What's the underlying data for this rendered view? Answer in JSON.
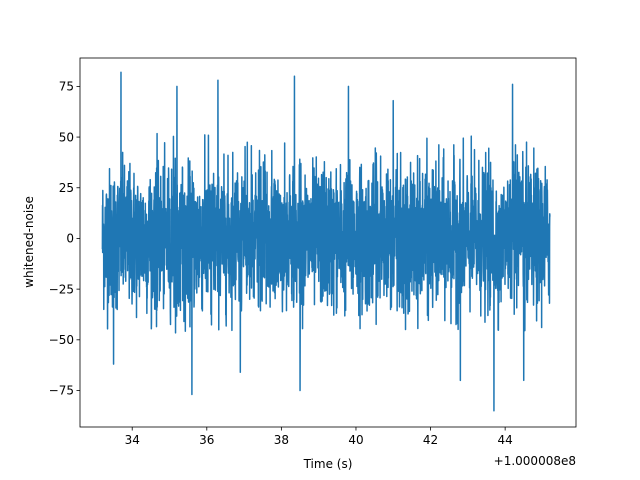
{
  "chart_data": {
    "type": "line",
    "title": "",
    "xlabel": "Time (s)",
    "ylabel": "whitened-noise",
    "x_offset_label": "+1.000008e8",
    "xlim": [
      32.6,
      45.9
    ],
    "ylim": [
      -93,
      89
    ],
    "x_tick_values": [
      34,
      36,
      38,
      40,
      42,
      44
    ],
    "x_tick_labels": [
      "34",
      "36",
      "38",
      "40",
      "42",
      "44"
    ],
    "y_tick_values": [
      75,
      50,
      25,
      0,
      -25,
      -50,
      -75
    ],
    "y_tick_labels": [
      "75",
      "50",
      "25",
      "0",
      "−25",
      "−50",
      "−75"
    ],
    "series": [
      {
        "color": "#1f77b4",
        "x_start": 33.2,
        "x_end": 45.2,
        "typical_envelope": [
          -47,
          52
        ],
        "spikes": [
          {
            "x": 33.7,
            "y": 82
          },
          {
            "x": 38.35,
            "y": 80
          },
          {
            "x": 36.3,
            "y": 78
          },
          {
            "x": 35.2,
            "y": 75
          },
          {
            "x": 39.8,
            "y": 75
          },
          {
            "x": 44.2,
            "y": 76
          },
          {
            "x": 43.7,
            "y": -85
          },
          {
            "x": 35.6,
            "y": -77
          },
          {
            "x": 38.5,
            "y": -75
          },
          {
            "x": 44.5,
            "y": -70
          },
          {
            "x": 33.5,
            "y": -62
          },
          {
            "x": 41.0,
            "y": 68
          },
          {
            "x": 36.9,
            "y": -66
          },
          {
            "x": 42.8,
            "y": -70
          }
        ]
      }
    ]
  }
}
